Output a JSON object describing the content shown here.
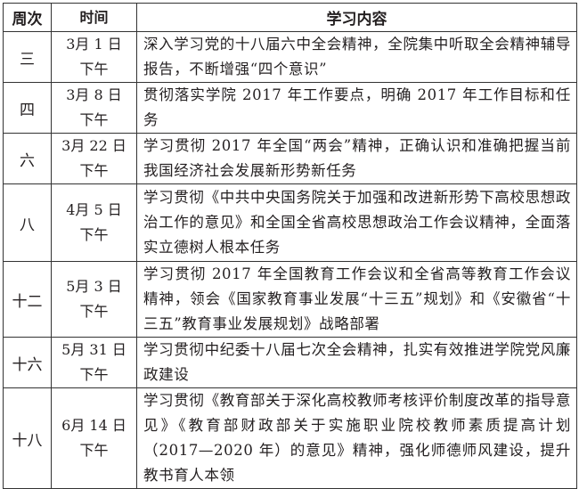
{
  "table": {
    "headers": [
      "周次",
      "时间",
      "学习内容"
    ],
    "rows": [
      {
        "week": "三",
        "date": "3月 1 日",
        "period": "下午",
        "content": "深入学习党的十八届六中全会精神，全院集中听取全会精神辅导报告，不断增强“四个意识”"
      },
      {
        "week": "四",
        "date": "3月 8 日",
        "period": "下午",
        "content": "贯彻落实学院 2017 年工作要点，明确 2017 年工作目标和任务"
      },
      {
        "week": "六",
        "date": "3月 22 日",
        "period": "下午",
        "content": "学习贯彻 2017 年全国“两会”精神，正确认识和准确把握当前我国经济社会发展新形势新任务"
      },
      {
        "week": "八",
        "date": "4月 5 日",
        "period": "下午",
        "content": "学习贯彻《中共中央国务院关于加强和改进新形势下高校思想政治工作的意见》和全国全省高校思想政治工作会议精神，全面落实立德树人根本任务"
      },
      {
        "week": "十二",
        "date": "5月 3 日",
        "period": "下午",
        "content": "学习贯彻 2017 年全国教育工作会议和全省高等教育工作会议精神，领会《国家教育事业发展“十三五”规划》和《安徽省“十三五”教育事业发展规划》战略部署"
      },
      {
        "week": "十六",
        "date": "5月 31 日",
        "period": "下午",
        "content": "学习贯彻中纪委十八届七次全会精神，扎实有效推进学院党风廉政建设"
      },
      {
        "week": "十八",
        "date": "6月 14 日",
        "period": "下午",
        "content": "学习贯彻《教育部关于深化高校教师考核评价制度改革的指导意见》《教育部财政部关于实施职业院校教师素质提高计划（2017—2020 年）的意见》精神，强化师德师风建设，提升教书育人本领"
      }
    ]
  }
}
